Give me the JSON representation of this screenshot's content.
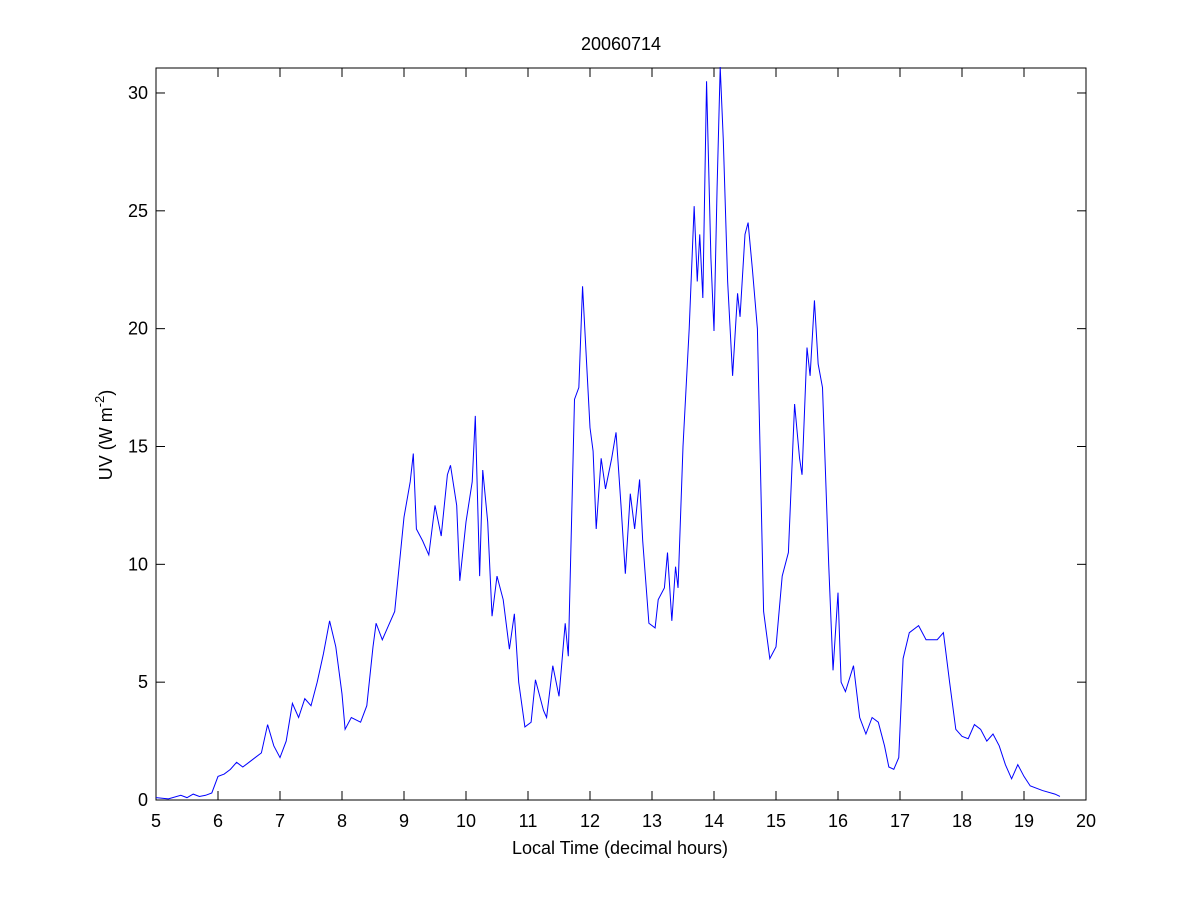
{
  "chart_data": {
    "type": "line",
    "title": "20060714",
    "xlabel": "Local Time (decimal hours)",
    "ylabel": {
      "text": "UV (W m",
      "superscript": "-2",
      "suffix": ")"
    },
    "xlim": [
      5,
      20
    ],
    "ylim": [
      0,
      31.06
    ],
    "xticks": [
      5,
      6,
      7,
      8,
      9,
      10,
      11,
      12,
      13,
      14,
      15,
      16,
      17,
      18,
      19,
      20
    ],
    "yticks": [
      0,
      5,
      10,
      15,
      20,
      25,
      30
    ],
    "grid": false,
    "series": [
      {
        "color": "#0000ff",
        "x": [
          5.0,
          5.2,
          5.4,
          5.5,
          5.6,
          5.7,
          5.8,
          5.9,
          6.0,
          6.1,
          6.2,
          6.3,
          6.4,
          6.5,
          6.6,
          6.7,
          6.8,
          6.9,
          7.0,
          7.1,
          7.2,
          7.3,
          7.4,
          7.5,
          7.6,
          7.7,
          7.8,
          7.9,
          8.0,
          8.05,
          8.15,
          8.3,
          8.4,
          8.5,
          8.55,
          8.65,
          8.75,
          8.85,
          9.0,
          9.1,
          9.15,
          9.2,
          9.3,
          9.4,
          9.5,
          9.6,
          9.7,
          9.75,
          9.85,
          9.9,
          10.0,
          10.1,
          10.15,
          10.22,
          10.27,
          10.35,
          10.42,
          10.5,
          10.6,
          10.7,
          10.78,
          10.85,
          10.95,
          11.05,
          11.12,
          11.25,
          11.3,
          11.4,
          11.5,
          11.6,
          11.65,
          11.75,
          11.82,
          11.88,
          12.0,
          12.05,
          12.1,
          12.18,
          12.25,
          12.35,
          12.42,
          12.5,
          12.57,
          12.65,
          12.72,
          12.8,
          12.85,
          12.95,
          13.05,
          13.1,
          13.2,
          13.25,
          13.32,
          13.38,
          13.42,
          13.5,
          13.6,
          13.68,
          13.73,
          13.77,
          13.82,
          13.88,
          13.95,
          14.0,
          14.05,
          14.1,
          14.15,
          14.22,
          14.3,
          14.38,
          14.42,
          14.5,
          14.55,
          14.62,
          14.7,
          14.8,
          14.9,
          15.0,
          15.1,
          15.2,
          15.3,
          15.38,
          15.42,
          15.5,
          15.55,
          15.62,
          15.68,
          15.75,
          15.85,
          15.92,
          16.0,
          16.05,
          16.12,
          16.25,
          16.35,
          16.45,
          16.55,
          16.65,
          16.75,
          16.82,
          16.9,
          16.98,
          17.05,
          17.15,
          17.3,
          17.42,
          17.6,
          17.7,
          17.8,
          17.9,
          18.0,
          18.1,
          18.2,
          18.3,
          18.4,
          18.5,
          18.6,
          18.7,
          18.8,
          18.9,
          19.0,
          19.1,
          19.3,
          19.5,
          19.58
        ],
        "values": [
          0.1,
          0.05,
          0.2,
          0.1,
          0.25,
          0.15,
          0.2,
          0.3,
          1.0,
          1.1,
          1.3,
          1.6,
          1.4,
          1.6,
          1.8,
          2.0,
          3.2,
          2.3,
          1.8,
          2.5,
          4.1,
          3.5,
          4.3,
          4.0,
          5.0,
          6.2,
          7.6,
          6.5,
          4.5,
          3.0,
          3.5,
          3.3,
          4.0,
          6.5,
          7.5,
          6.8,
          7.4,
          8.0,
          12.0,
          13.5,
          14.7,
          11.5,
          11.0,
          10.4,
          12.5,
          11.2,
          13.8,
          14.2,
          12.5,
          9.3,
          11.8,
          13.5,
          16.3,
          9.5,
          14.0,
          11.8,
          7.8,
          9.5,
          8.5,
          6.4,
          7.9,
          5.0,
          3.1,
          3.3,
          5.1,
          3.8,
          3.5,
          5.7,
          4.4,
          7.5,
          6.1,
          17.0,
          17.5,
          21.8,
          15.8,
          14.8,
          11.5,
          14.5,
          13.2,
          14.5,
          15.6,
          12.5,
          9.6,
          13.0,
          11.5,
          13.6,
          11.0,
          7.5,
          7.3,
          8.5,
          9.0,
          10.5,
          7.6,
          9.9,
          9.0,
          15.0,
          20.0,
          25.2,
          22.0,
          24.0,
          21.3,
          30.5,
          23.0,
          19.9,
          26.0,
          31.1,
          28.0,
          22.0,
          18.0,
          21.5,
          20.5,
          24.0,
          24.5,
          22.5,
          20.0,
          8.0,
          6.0,
          6.5,
          9.5,
          10.5,
          16.8,
          14.5,
          13.8,
          19.2,
          18.0,
          21.2,
          18.5,
          17.5,
          10.0,
          5.5,
          8.8,
          5.0,
          4.6,
          5.7,
          3.5,
          2.8,
          3.5,
          3.3,
          2.3,
          1.4,
          1.3,
          1.8,
          6.0,
          7.1,
          7.4,
          6.8,
          6.8,
          7.1,
          5.0,
          3.0,
          2.7,
          2.6,
          3.2,
          3.0,
          2.5,
          2.8,
          2.3,
          1.5,
          0.9,
          1.5,
          1.0,
          0.6,
          0.4,
          0.25,
          0.15
        ]
      }
    ]
  }
}
